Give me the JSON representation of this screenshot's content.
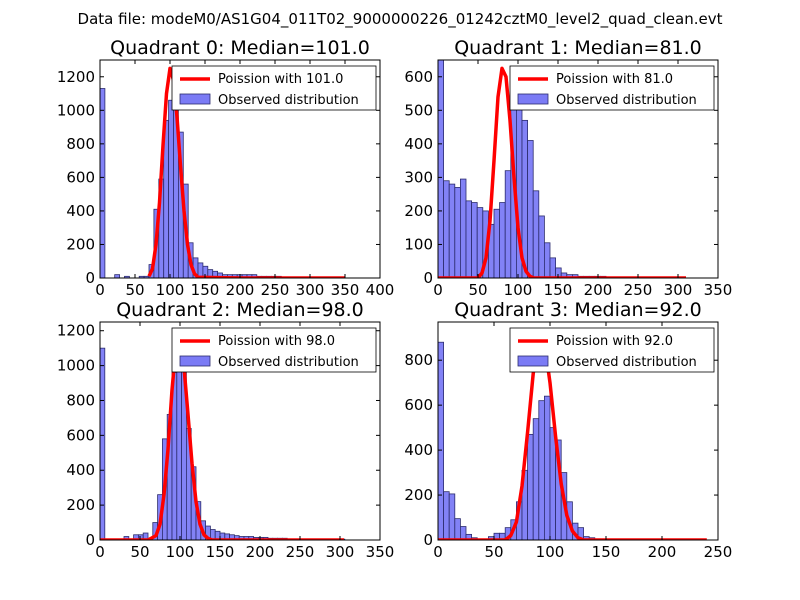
{
  "suptitle": "Data file: modeM0/AS1G04_011T02_9000000226_01242cztM0_level2_quad_clean.evt",
  "colors": {
    "hist_fill": "#7b7bf5",
    "hist_edge": "#2c2c6e",
    "poisson_line": "#ff0000"
  },
  "chart_data": [
    {
      "type": "histogram+line",
      "title": "Quadrant 0: Median=101.0",
      "xlim": [
        0,
        400
      ],
      "ylim": [
        0,
        1300
      ],
      "xticks": [
        0,
        50,
        100,
        150,
        200,
        250,
        300,
        350,
        400
      ],
      "yticks": [
        0,
        200,
        400,
        600,
        800,
        1000,
        1200
      ],
      "bin_width": 7,
      "bins": [
        [
          0,
          1130
        ],
        [
          21,
          20
        ],
        [
          35,
          10
        ],
        [
          56,
          10
        ],
        [
          63,
          10
        ],
        [
          70,
          80
        ],
        [
          77,
          410
        ],
        [
          84,
          590
        ],
        [
          91,
          940
        ],
        [
          98,
          1060
        ],
        [
          105,
          1260
        ],
        [
          112,
          870
        ],
        [
          119,
          560
        ],
        [
          126,
          210
        ],
        [
          133,
          120
        ],
        [
          140,
          90
        ],
        [
          147,
          70
        ],
        [
          154,
          50
        ],
        [
          161,
          40
        ],
        [
          168,
          30
        ],
        [
          175,
          20
        ],
        [
          182,
          20
        ],
        [
          189,
          20
        ],
        [
          196,
          20
        ],
        [
          203,
          20
        ],
        [
          210,
          20
        ],
        [
          217,
          20
        ],
        [
          224,
          10
        ],
        [
          231,
          10
        ],
        [
          238,
          10
        ],
        [
          245,
          10
        ],
        [
          252,
          10
        ],
        [
          259,
          5
        ],
        [
          266,
          5
        ],
        [
          273,
          5
        ],
        [
          280,
          5
        ]
      ],
      "line": {
        "label": "Poission with 101.0",
        "x": [
          70,
          75,
          80,
          85,
          90,
          95,
          100,
          105,
          110,
          115,
          120,
          125,
          130,
          135,
          140,
          200,
          350
        ],
        "y": [
          10,
          55,
          200,
          450,
          790,
          1100,
          1250,
          1180,
          960,
          670,
          400,
          200,
          80,
          25,
          5,
          0,
          0
        ]
      },
      "legend": {
        "line_label": "Poission with 101.0",
        "hist_label": "Observed distribution",
        "loc": "upper right"
      }
    },
    {
      "type": "histogram+line",
      "title": "Quadrant 1: Median=81.0",
      "xlim": [
        0,
        350
      ],
      "ylim": [
        0,
        650
      ],
      "xticks": [
        0,
        50,
        100,
        150,
        200,
        250,
        300,
        350
      ],
      "yticks": [
        0,
        100,
        200,
        300,
        400,
        500,
        600
      ],
      "bin_width": 7,
      "bins": [
        [
          0,
          650
        ],
        [
          7,
          290
        ],
        [
          14,
          280
        ],
        [
          21,
          270
        ],
        [
          28,
          295
        ],
        [
          35,
          230
        ],
        [
          42,
          225
        ],
        [
          49,
          210
        ],
        [
          56,
          200
        ],
        [
          63,
          160
        ],
        [
          70,
          205
        ],
        [
          77,
          225
        ],
        [
          84,
          320
        ],
        [
          91,
          520
        ],
        [
          98,
          580
        ],
        [
          105,
          470
        ],
        [
          112,
          410
        ],
        [
          119,
          260
        ],
        [
          126,
          185
        ],
        [
          133,
          105
        ],
        [
          140,
          60
        ],
        [
          147,
          30
        ],
        [
          154,
          15
        ],
        [
          161,
          10
        ],
        [
          168,
          10
        ],
        [
          175,
          5
        ],
        [
          182,
          5
        ],
        [
          189,
          5
        ],
        [
          196,
          5
        ],
        [
          203,
          5
        ]
      ],
      "line": {
        "label": "Poission with 81.0",
        "x": [
          0,
          50,
          55,
          60,
          65,
          70,
          75,
          80,
          85,
          90,
          95,
          100,
          105,
          110,
          115,
          120,
          310
        ],
        "y": [
          0,
          0,
          15,
          60,
          170,
          350,
          540,
          625,
          600,
          470,
          300,
          150,
          60,
          20,
          5,
          0,
          0
        ]
      },
      "legend": {
        "line_label": "Poission with 81.0",
        "hist_label": "Observed distribution",
        "loc": "upper right"
      }
    },
    {
      "type": "histogram+line",
      "title": "Quadrant 2: Median=98.0",
      "xlim": [
        0,
        350
      ],
      "ylim": [
        0,
        1250
      ],
      "xticks": [
        0,
        50,
        100,
        150,
        200,
        250,
        300,
        350
      ],
      "yticks": [
        0,
        200,
        400,
        600,
        800,
        1000,
        1200
      ],
      "bin_width": 6,
      "bins": [
        [
          0,
          1100
        ],
        [
          30,
          20
        ],
        [
          42,
          30
        ],
        [
          48,
          30
        ],
        [
          54,
          40
        ],
        [
          66,
          100
        ],
        [
          72,
          260
        ],
        [
          78,
          580
        ],
        [
          84,
          720
        ],
        [
          90,
          960
        ],
        [
          96,
          1150
        ],
        [
          102,
          1000
        ],
        [
          108,
          640
        ],
        [
          114,
          420
        ],
        [
          120,
          220
        ],
        [
          126,
          110
        ],
        [
          132,
          80
        ],
        [
          138,
          60
        ],
        [
          144,
          50
        ],
        [
          150,
          40
        ],
        [
          156,
          35
        ],
        [
          162,
          30
        ],
        [
          168,
          25
        ],
        [
          174,
          20
        ],
        [
          180,
          20
        ],
        [
          186,
          20
        ],
        [
          192,
          15
        ],
        [
          198,
          15
        ],
        [
          204,
          15
        ],
        [
          210,
          10
        ],
        [
          216,
          10
        ],
        [
          222,
          10
        ],
        [
          228,
          10
        ],
        [
          234,
          5
        ],
        [
          240,
          5
        ],
        [
          246,
          5
        ],
        [
          252,
          5
        ],
        [
          258,
          5
        ],
        [
          300,
          5
        ]
      ],
      "line": {
        "label": "Poission with 98.0",
        "x": [
          0,
          60,
          70,
          75,
          80,
          85,
          90,
          95,
          100,
          105,
          110,
          115,
          120,
          125,
          130,
          135,
          140,
          305
        ],
        "y": [
          0,
          0,
          25,
          90,
          260,
          520,
          860,
          1110,
          1160,
          990,
          720,
          440,
          220,
          90,
          30,
          10,
          0,
          0
        ]
      },
      "legend": {
        "line_label": "Poission with 98.0",
        "hist_label": "Observed distribution",
        "loc": "upper right"
      }
    },
    {
      "type": "histogram+line",
      "title": "Quadrant 3: Median=92.0",
      "xlim": [
        0,
        250
      ],
      "ylim": [
        0,
        970
      ],
      "xticks": [
        0,
        50,
        100,
        150,
        200,
        250
      ],
      "yticks": [
        0,
        200,
        400,
        600,
        800
      ],
      "bin_width": 5,
      "bins": [
        [
          0,
          880
        ],
        [
          5,
          215
        ],
        [
          10,
          205
        ],
        [
          15,
          95
        ],
        [
          20,
          60
        ],
        [
          25,
          25
        ],
        [
          30,
          10
        ],
        [
          45,
          15
        ],
        [
          50,
          30
        ],
        [
          55,
          30
        ],
        [
          60,
          55
        ],
        [
          65,
          90
        ],
        [
          70,
          170
        ],
        [
          75,
          310
        ],
        [
          80,
          470
        ],
        [
          85,
          540
        ],
        [
          90,
          620
        ],
        [
          95,
          640
        ],
        [
          100,
          500
        ],
        [
          105,
          445
        ],
        [
          110,
          300
        ],
        [
          115,
          170
        ],
        [
          120,
          75
        ],
        [
          125,
          55
        ],
        [
          130,
          15
        ],
        [
          135,
          10
        ],
        [
          140,
          5
        ]
      ],
      "line": {
        "label": "Poission with 92.0",
        "x": [
          0,
          60,
          65,
          70,
          75,
          80,
          85,
          90,
          95,
          100,
          105,
          110,
          115,
          120,
          125,
          130,
          240
        ],
        "y": [
          0,
          0,
          20,
          80,
          240,
          480,
          740,
          900,
          880,
          700,
          460,
          250,
          110,
          40,
          10,
          0,
          0
        ]
      },
      "legend": {
        "line_label": "Poission with 92.0",
        "hist_label": "Observed distribution",
        "loc": "upper right"
      }
    }
  ]
}
